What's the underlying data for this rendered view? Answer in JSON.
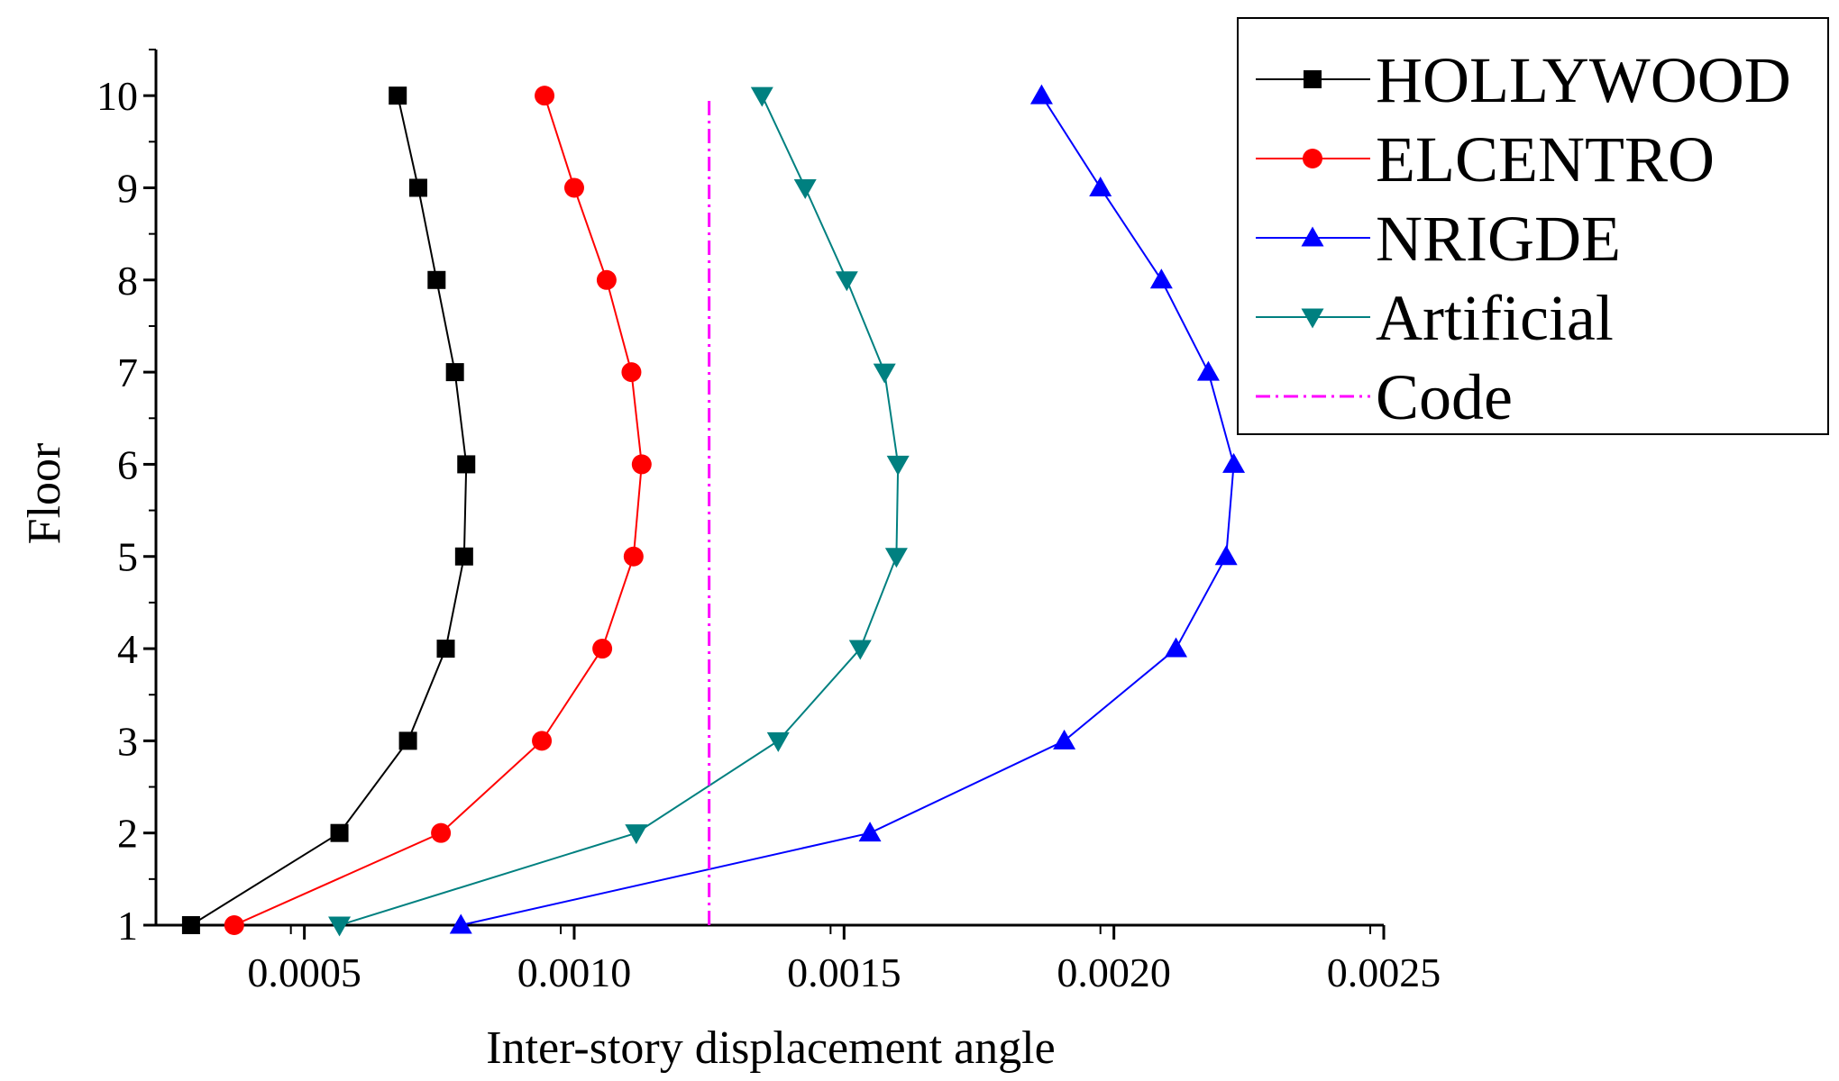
{
  "chart_data": {
    "type": "line",
    "title": "",
    "xlabel": "Inter-story displacement angle",
    "ylabel": "Floor",
    "xlim": [
      0.000225,
      0.0025
    ],
    "ylim": [
      1,
      10.5
    ],
    "xticks": [
      0.0005,
      0.001,
      0.0015,
      0.002,
      0.0025
    ],
    "xtick_labels": [
      "0.0005",
      "0.0010",
      "0.0015",
      "0.0020",
      "0.0025"
    ],
    "x_minor_step": 0.00025,
    "yticks": [
      1,
      2,
      3,
      4,
      5,
      6,
      7,
      8,
      9,
      10
    ],
    "ytick_labels": [
      "1",
      "2",
      "3",
      "4",
      "5",
      "6",
      "7",
      "8",
      "9",
      "10"
    ],
    "grid": false,
    "legend_position": "top-right",
    "series": [
      {
        "name": "HOLLYWOOD",
        "color": "#000000",
        "marker": "square",
        "x": [
          0.00029,
          0.000565,
          0.000692,
          0.000762,
          0.000796,
          0.0008,
          0.000779,
          0.000745,
          0.000711,
          0.000673
        ],
        "y": [
          1,
          2,
          3,
          4,
          5,
          6,
          7,
          8,
          9,
          10
        ]
      },
      {
        "name": "ELCENTRO",
        "color": "#ff0000",
        "marker": "circle",
        "x": [
          0.00037,
          0.000753,
          0.00094,
          0.001052,
          0.00111,
          0.001125,
          0.001106,
          0.00106,
          0.001,
          0.000945
        ],
        "y": [
          1,
          2,
          3,
          4,
          5,
          6,
          7,
          8,
          9,
          10
        ]
      },
      {
        "name": "NRIGDE",
        "color": "#0000ff",
        "marker": "triangle-up",
        "x": [
          0.00079,
          0.001548,
          0.001908,
          0.002115,
          0.002208,
          0.002222,
          0.002175,
          0.002088,
          0.001975,
          0.001866
        ],
        "y": [
          1,
          2,
          3,
          4,
          5,
          6,
          7,
          8,
          9,
          10
        ]
      },
      {
        "name": "Artificial",
        "color": "#008080",
        "marker": "triangle-down",
        "x": [
          0.000565,
          0.001115,
          0.001378,
          0.00153,
          0.001597,
          0.0016,
          0.001575,
          0.001505,
          0.001428,
          0.001348
        ],
        "y": [
          1,
          2,
          3,
          4,
          5,
          6,
          7,
          8,
          9,
          10
        ]
      },
      {
        "name": "Code",
        "color": "#ff00ff",
        "marker": "none",
        "dash": "dash-dot",
        "x": [
          0.00125,
          0.00125
        ],
        "y": [
          1,
          10
        ]
      }
    ]
  }
}
